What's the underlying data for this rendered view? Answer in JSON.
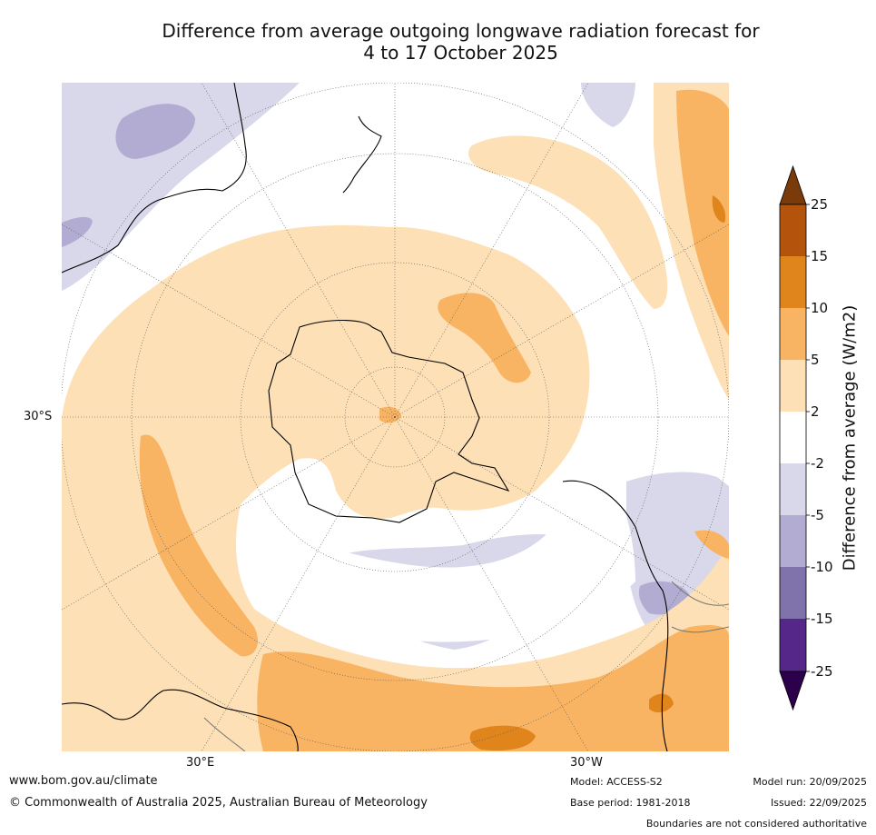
{
  "title": {
    "line1": "Difference from average outgoing longwave radiation forecast for",
    "line2": "4 to 17 October 2025"
  },
  "map": {
    "projection": "south polar stereographic",
    "labels": {
      "lat_30s": "30°S",
      "lon_30e": "30°E",
      "lon_30w": "30°W"
    }
  },
  "legend": {
    "title": "Difference from average (W/m2)",
    "ticks": [
      "25",
      "15",
      "10",
      "5",
      "2",
      "-2",
      "-5",
      "-10",
      "-15",
      "-25"
    ],
    "colors": {
      "gt25": "#7a3a0a",
      "15_25": "#b3530c",
      "10_15": "#e0841c",
      "5_10": "#f8b463",
      "2_5": "#fde0b6",
      "n2_2": "#ffffff",
      "n5_n2": "#d8d8ea",
      "n10_n5": "#b3acd2",
      "n15_n10": "#8073ac",
      "n25_n15": "#542788",
      "lt_n25": "#2d004b"
    }
  },
  "footer": {
    "website": "www.bom.gov.au/climate",
    "copyright": "© Commonwealth of Australia 2025, Australian Bureau of Meteorology",
    "model": "Model: ACCESS-S2",
    "base_period": "Base period: 1981-2018",
    "model_run": "Model run: 20/09/2025",
    "issued": "Issued: 22/09/2025",
    "disclaimer": "Boundaries are not considered authoritative"
  }
}
